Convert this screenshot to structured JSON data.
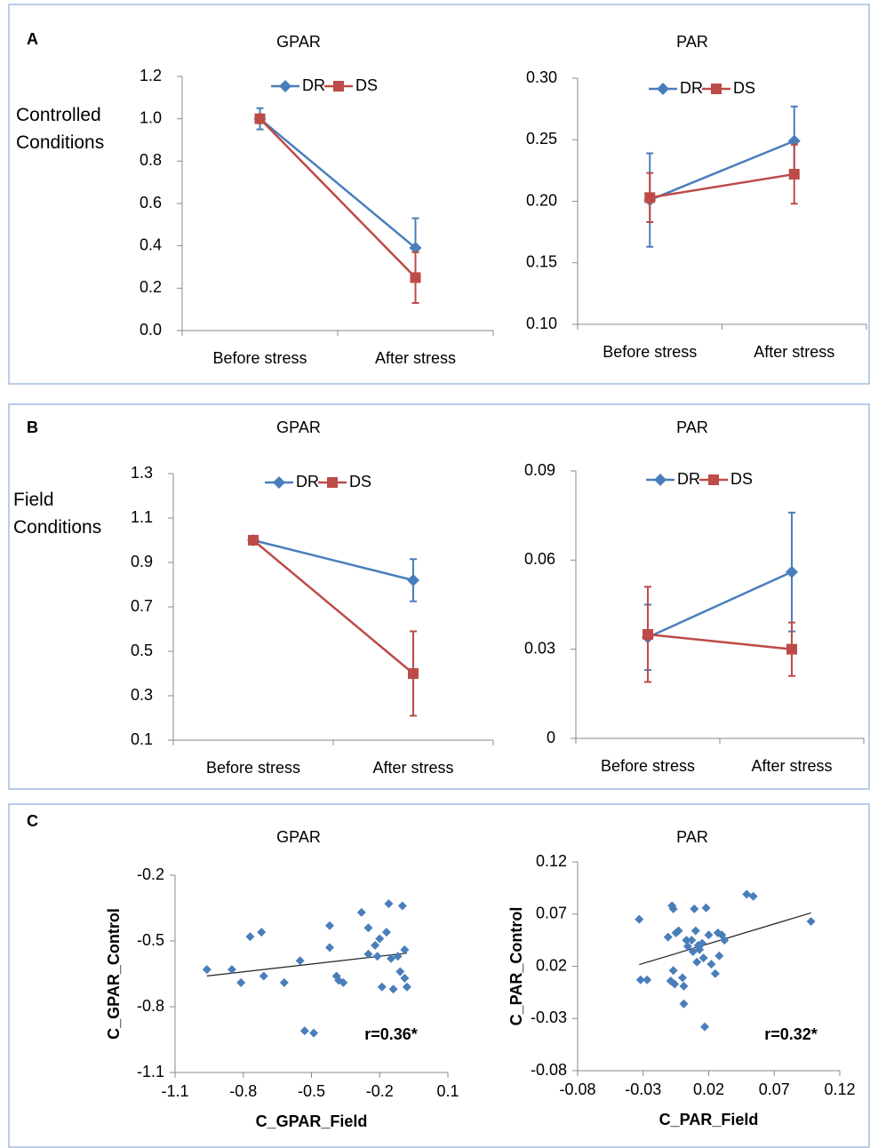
{
  "chart_data": [
    {
      "type": "line",
      "panel": "A",
      "row_label": "Controlled Conditions",
      "title": "GPAR",
      "categories": [
        "Before stress",
        "After stress"
      ],
      "series": [
        {
          "name": "DR",
          "color": "#4a7ebb",
          "marker": "diamond",
          "values": [
            1.0,
            0.39
          ],
          "errors": [
            0.05,
            0.14
          ]
        },
        {
          "name": "DS",
          "color": "#be4b48",
          "marker": "square",
          "values": [
            1.0,
            0.25
          ],
          "errors": [
            0.02,
            0.12
          ]
        }
      ],
      "ylim": [
        0,
        1.2
      ],
      "yticks": [
        {
          "value": 0,
          "label": "0.0"
        },
        0.2,
        0.4,
        0.6,
        0.8,
        {
          "value": 1,
          "label": "1.0"
        },
        1.2
      ]
    },
    {
      "type": "line",
      "title": "PAR",
      "categories": [
        "Before stress",
        "After stress"
      ],
      "series": [
        {
          "name": "DR",
          "color": "#4a7ebb",
          "marker": "diamond",
          "values": [
            0.201,
            0.249
          ],
          "errors": [
            0.038,
            0.028
          ]
        },
        {
          "name": "DS",
          "color": "#be4b48",
          "marker": "square",
          "values": [
            0.203,
            0.222
          ],
          "errors": [
            0.02,
            0.024
          ]
        }
      ],
      "ylim": [
        0.1,
        0.3
      ],
      "yticks": [
        {
          "value": 0.1,
          "label": "0.10"
        },
        0.15,
        {
          "value": 0.2,
          "label": "0.20"
        },
        0.25,
        {
          "value": 0.3,
          "label": "0.30"
        }
      ]
    },
    {
      "type": "line",
      "panel": "B",
      "row_label": "Field Conditions",
      "title": "GPAR",
      "categories": [
        "Before stress",
        "After stress"
      ],
      "series": [
        {
          "name": "DR",
          "color": "#4a7ebb",
          "marker": "diamond",
          "values": [
            1.0,
            0.82
          ],
          "errors": [
            null,
            0.095
          ]
        },
        {
          "name": "DS",
          "color": "#be4b48",
          "marker": "square",
          "values": [
            1.0,
            0.4
          ],
          "errors": [
            null,
            0.19
          ]
        }
      ],
      "ylim": [
        0.1,
        1.3
      ],
      "yticks": [
        0.1,
        0.3,
        0.5,
        0.7,
        0.9,
        1.1,
        1.3
      ]
    },
    {
      "type": "line",
      "title": "PAR",
      "categories": [
        "Before stress",
        "After stress"
      ],
      "series": [
        {
          "name": "DR",
          "color": "#4a7ebb",
          "marker": "diamond",
          "values": [
            0.034,
            0.056
          ],
          "errors": [
            0.011,
            0.02
          ]
        },
        {
          "name": "DS",
          "color": "#be4b48",
          "marker": "square",
          "values": [
            0.035,
            0.03
          ],
          "errors": [
            0.016,
            0.009
          ]
        }
      ],
      "ylim": [
        0,
        0.09
      ],
      "yticks": [
        0,
        0.03,
        0.06,
        0.09
      ]
    },
    {
      "type": "scatter",
      "panel": "C",
      "title": "GPAR",
      "xlabel": "C_GPAR_Field",
      "ylabel": "C_GPAR_Control",
      "annotation": "r=0.36*",
      "color": "#4a7ebb",
      "x": [
        -0.96,
        -0.85,
        -0.81,
        -0.77,
        -0.72,
        -0.71,
        -0.62,
        -0.55,
        -0.53,
        -0.49,
        -0.42,
        -0.42,
        -0.39,
        -0.38,
        -0.36,
        -0.28,
        -0.25,
        -0.25,
        -0.22,
        -0.21,
        -0.2,
        -0.19,
        -0.16,
        -0.15,
        -0.14,
        -0.12,
        -0.11,
        -0.1,
        -0.09,
        -0.09,
        -0.08,
        -0.17
      ],
      "y": [
        -0.63,
        -0.63,
        -0.69,
        -0.48,
        -0.46,
        -0.66,
        -0.69,
        -0.59,
        -0.91,
        -0.92,
        -0.43,
        -0.53,
        -0.66,
        -0.68,
        -0.69,
        -0.37,
        -0.44,
        -0.56,
        -0.52,
        -0.57,
        -0.49,
        -0.71,
        -0.33,
        -0.58,
        -0.72,
        -0.57,
        -0.64,
        -0.34,
        -0.67,
        -0.54,
        -0.71,
        -0.46
      ],
      "xlim": [
        -1.1,
        0.1
      ],
      "xticks": [
        -1.1,
        -0.8,
        -0.5,
        -0.2,
        0.1
      ],
      "ylim": [
        -1.1,
        -0.2
      ],
      "yticks": [
        -1.1,
        -0.8,
        -0.5,
        -0.2
      ]
    },
    {
      "type": "scatter",
      "title": "PAR",
      "xlabel": "C_PAR_Field",
      "ylabel": "C_PAR_Control",
      "annotation": "r=0.32*",
      "color": "#4a7ebb",
      "x": [
        -0.033,
        -0.032,
        -0.027,
        -0.011,
        -0.009,
        -0.008,
        -0.007,
        -0.007,
        -0.006,
        -0.005,
        -0.003,
        0.0,
        0.001,
        0.001,
        0.003,
        0.004,
        0.007,
        0.008,
        0.009,
        0.01,
        0.011,
        0.012,
        0.013,
        0.015,
        0.016,
        0.017,
        0.018,
        0.02,
        0.022,
        0.025,
        0.027,
        0.028,
        0.03,
        0.032,
        0.049,
        0.054,
        0.098
      ],
      "y": [
        0.065,
        0.007,
        0.007,
        0.048,
        0.006,
        0.078,
        0.075,
        0.016,
        0.003,
        0.052,
        0.054,
        0.009,
        -0.016,
        0.001,
        0.045,
        0.039,
        0.045,
        0.034,
        0.075,
        0.054,
        0.024,
        0.04,
        0.036,
        0.042,
        0.028,
        -0.038,
        0.076,
        0.05,
        0.022,
        0.013,
        0.052,
        0.03,
        0.05,
        0.045,
        0.089,
        0.087,
        0.063
      ],
      "xlim": [
        -0.08,
        0.12
      ],
      "xticks": [
        -0.08,
        -0.03,
        0.02,
        0.07,
        0.12
      ],
      "ylim": [
        -0.08,
        0.12
      ],
      "yticks": [
        -0.08,
        -0.03,
        0.02,
        0.07,
        0.12
      ]
    }
  ]
}
